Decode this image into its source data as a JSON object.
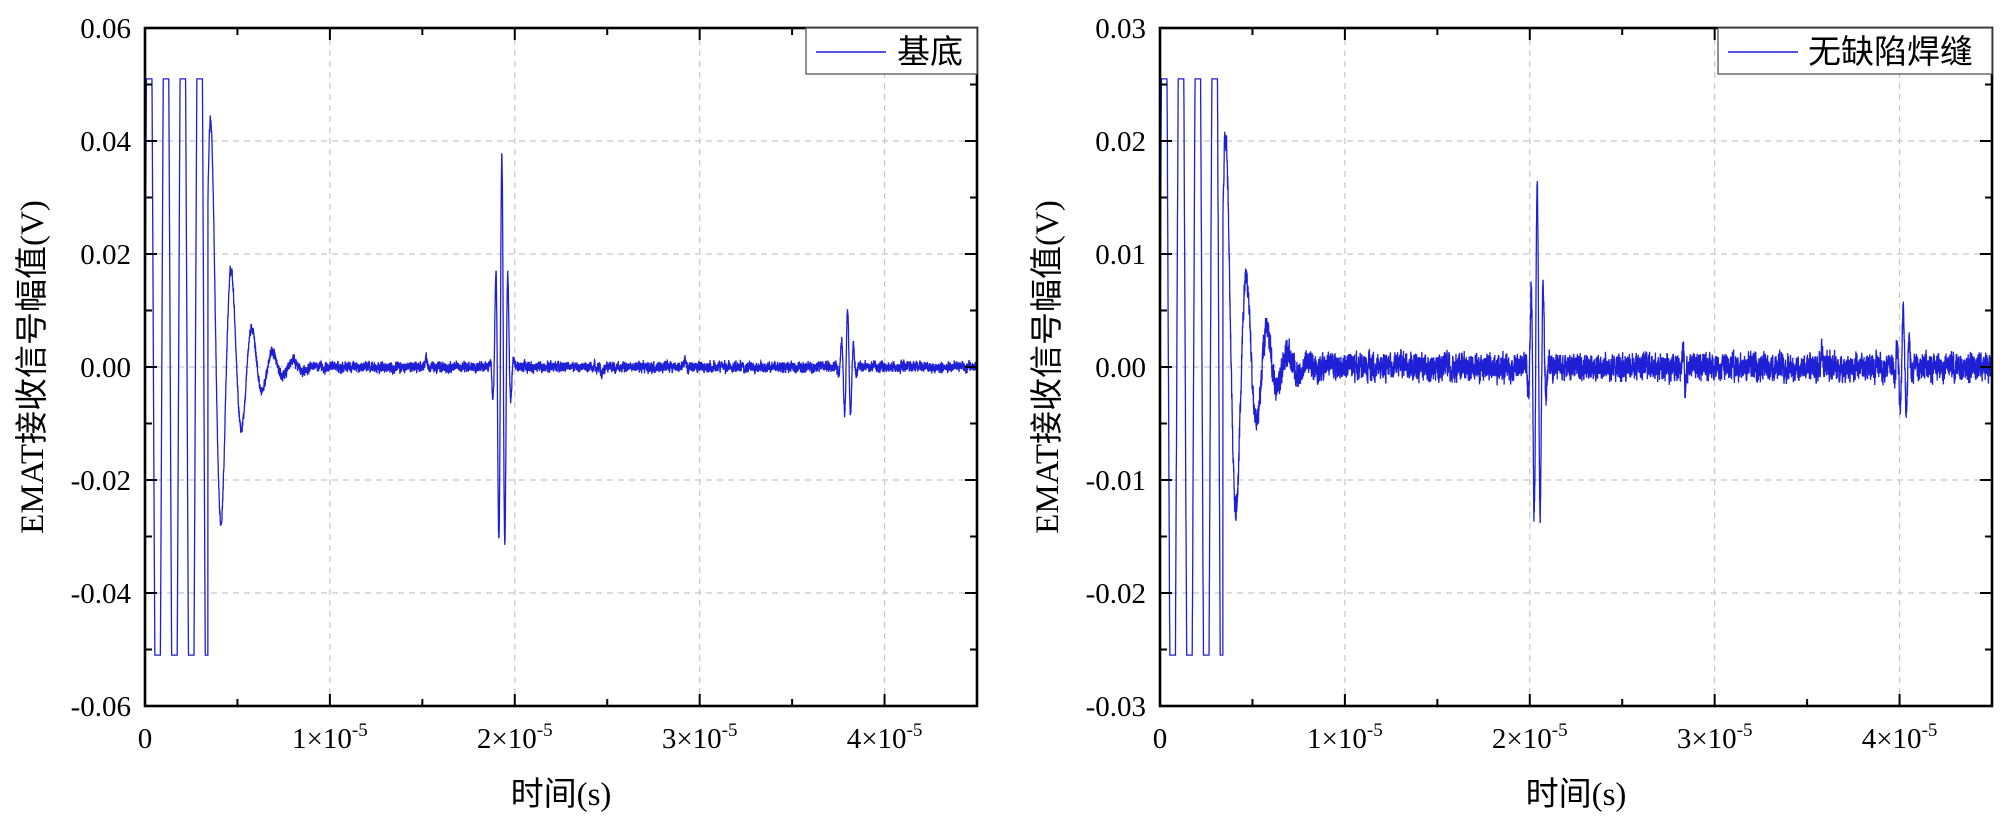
{
  "chart_data": [
    {
      "type": "line",
      "title": "",
      "xlabel": "时间(s)",
      "ylabel": "EMAT接收信号幅值(V)",
      "xlim": [
        0,
        4.5e-05
      ],
      "ylim": [
        -0.06,
        0.06
      ],
      "grid": true,
      "legend_position": "top-right",
      "x_ticks": [
        0,
        1e-05,
        2e-05,
        3e-05,
        4e-05
      ],
      "x_tick_labels": [
        {
          "base": "0",
          "exp": ""
        },
        {
          "base": "1×10",
          "exp": "-5"
        },
        {
          "base": "2×10",
          "exp": "-5"
        },
        {
          "base": "3×10",
          "exp": "-5"
        },
        {
          "base": "4×10",
          "exp": "-5"
        }
      ],
      "y_ticks": [
        -0.06,
        -0.04,
        -0.02,
        0,
        0.02,
        0.04,
        0.06
      ],
      "y_tick_labels": [
        "-0.06",
        "-0.04",
        "-0.02",
        "0.00",
        "0.02",
        "0.04",
        "0.06"
      ],
      "series": [
        {
          "name": "基底",
          "color": "#1f1fd6",
          "signal": {
            "sample_step": 5e-09,
            "saturation": 0.051,
            "excitation": {
              "start": 0,
              "end": 3.4e-06,
              "amplitude": 0.1,
              "frequency": 1100000.0
            },
            "excitation_ringdown": {
              "start": 3.4e-06,
              "amplitude": 0.05,
              "decay": 1.2e-06,
              "frequency": 900000.0
            },
            "noise_level": 0.0009,
            "echoes": [
              {
                "center": 1.93e-05,
                "amplitude": 0.038,
                "width": 2.5e-07,
                "frequency": 3000000.0
              },
              {
                "center": 3.8e-05,
                "amplitude": 0.01,
                "width": 2.5e-07,
                "frequency": 3000000.0
              }
            ],
            "spikes": [
              {
                "t": 1.52e-05,
                "v": 0.002
              },
              {
                "t": 2.92e-05,
                "v": 0.0015
              },
              {
                "t": 2.47e-05,
                "v": -0.0013
              }
            ]
          }
        }
      ]
    },
    {
      "type": "line",
      "title": "",
      "xlabel": "时间(s)",
      "ylabel": "EMAT接收信号幅值(V)",
      "xlim": [
        0,
        4.5e-05
      ],
      "ylim": [
        -0.03,
        0.03
      ],
      "grid": true,
      "legend_position": "top-right",
      "x_ticks": [
        0,
        1e-05,
        2e-05,
        3e-05,
        4e-05
      ],
      "x_tick_labels": [
        {
          "base": "0",
          "exp": ""
        },
        {
          "base": "1×10",
          "exp": "-5"
        },
        {
          "base": "2×10",
          "exp": "-5"
        },
        {
          "base": "3×10",
          "exp": "-5"
        },
        {
          "base": "4×10",
          "exp": "-5"
        }
      ],
      "y_ticks": [
        -0.03,
        -0.02,
        -0.01,
        0,
        0.01,
        0.02,
        0.03
      ],
      "y_tick_labels": [
        "-0.03",
        "-0.02",
        "-0.01",
        "0.00",
        "0.01",
        "0.02",
        "0.03"
      ],
      "series": [
        {
          "name": "无缺陷焊缝",
          "color": "#1f1fd6",
          "signal": {
            "sample_step": 5e-09,
            "saturation": 0.0255,
            "excitation": {
              "start": 0,
              "end": 3.4e-06,
              "amplitude": 0.05,
              "frequency": 1100000.0
            },
            "excitation_ringdown": {
              "start": 3.4e-06,
              "amplitude": 0.023,
              "decay": 1.2e-06,
              "frequency": 900000.0
            },
            "noise_level": 0.0011,
            "echoes": [
              {
                "center": 2.04e-05,
                "amplitude": 0.016,
                "width": 2.5e-07,
                "frequency": 3000000.0
              },
              {
                "center": 4.02e-05,
                "amplitude": 0.005,
                "width": 2.5e-07,
                "frequency": 3000000.0
              }
            ],
            "spikes": [
              {
                "t": 2.83e-05,
                "v": 0.0018
              },
              {
                "t": 2.84e-05,
                "v": -0.0022
              },
              {
                "t": 3.58e-05,
                "v": 0.0014
              }
            ]
          }
        }
      ]
    }
  ]
}
